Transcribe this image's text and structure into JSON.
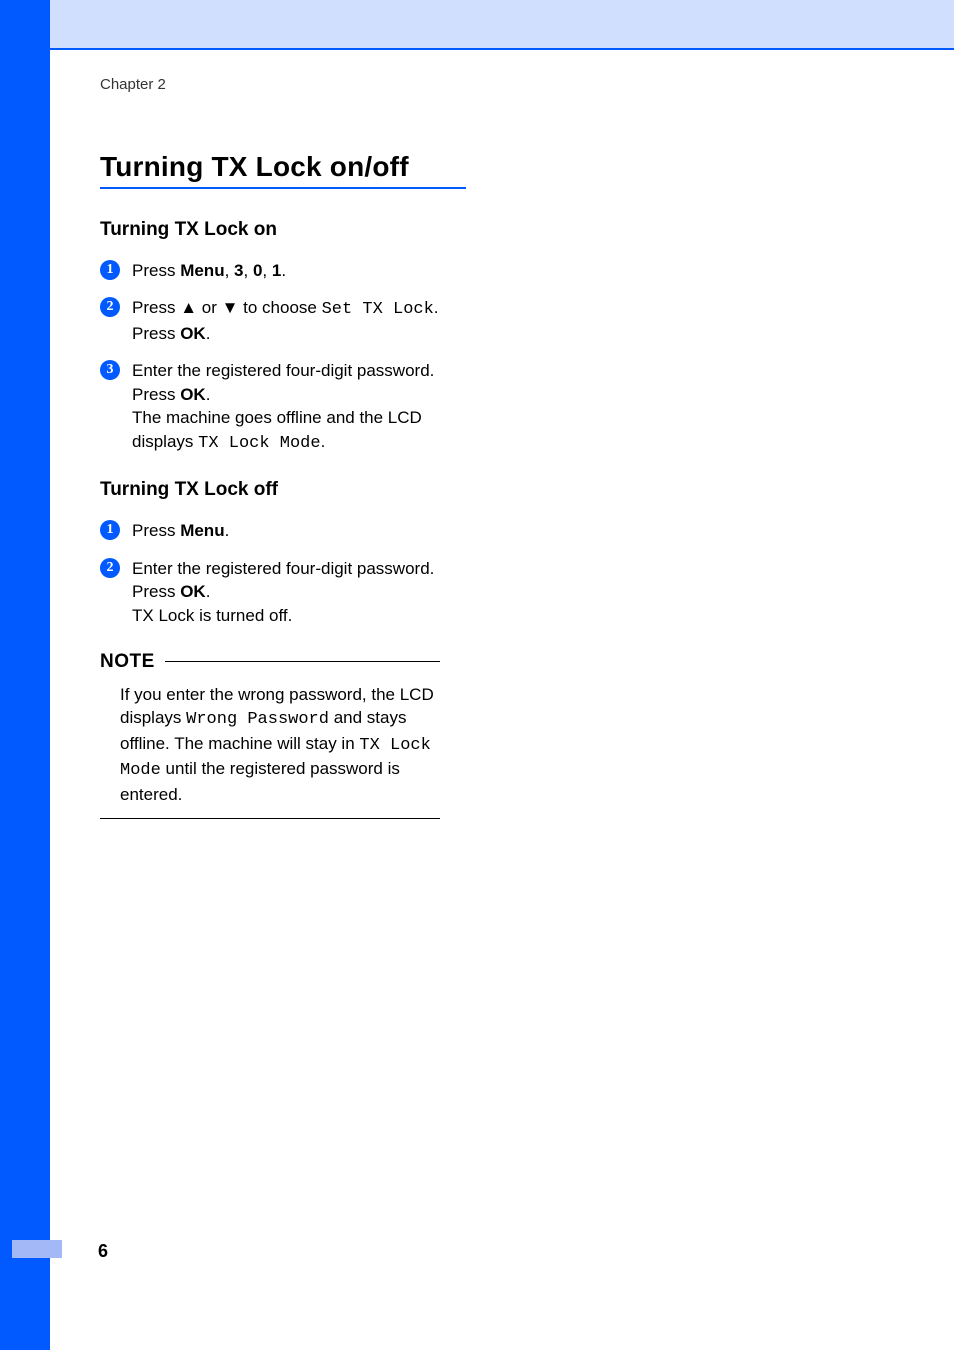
{
  "colors": {
    "accent": "#005aff",
    "header_bg": "#d0dffe",
    "footer_tab": "#a3b9f7"
  },
  "chapter_label": "Chapter 2",
  "page_number": "6",
  "section_title": "Turning TX Lock on/off",
  "subsection_on": {
    "heading": "Turning TX Lock on",
    "steps": [
      {
        "n": "1",
        "parts": [
          {
            "t": "Press "
          },
          {
            "t": "Menu",
            "b": true
          },
          {
            "t": ", "
          },
          {
            "t": "3",
            "b": true
          },
          {
            "t": ", "
          },
          {
            "t": "0",
            "b": true
          },
          {
            "t": ", "
          },
          {
            "t": "1",
            "b": true
          },
          {
            "t": "."
          }
        ]
      },
      {
        "n": "2",
        "parts": [
          {
            "t": "Press "
          },
          {
            "t": "▲",
            "glyph": true
          },
          {
            "t": " or "
          },
          {
            "t": "▼",
            "glyph": true
          },
          {
            "t": " to choose "
          },
          {
            "t": "Set TX Lock",
            "mono": true
          },
          {
            "t": "."
          },
          {
            "br": true
          },
          {
            "t": "Press "
          },
          {
            "t": "OK",
            "b": true
          },
          {
            "t": "."
          }
        ]
      },
      {
        "n": "3",
        "parts": [
          {
            "t": "Enter the registered four-digit password."
          },
          {
            "br": true
          },
          {
            "t": "Press "
          },
          {
            "t": "OK",
            "b": true
          },
          {
            "t": "."
          },
          {
            "br": true
          },
          {
            "t": "The machine goes offline and the LCD displays "
          },
          {
            "t": "TX Lock Mode",
            "mono": true
          },
          {
            "t": "."
          }
        ]
      }
    ]
  },
  "subsection_off": {
    "heading": "Turning TX Lock off",
    "steps": [
      {
        "n": "1",
        "parts": [
          {
            "t": "Press "
          },
          {
            "t": "Menu",
            "b": true
          },
          {
            "t": "."
          }
        ]
      },
      {
        "n": "2",
        "parts": [
          {
            "t": "Enter the registered four-digit password."
          },
          {
            "br": true
          },
          {
            "t": "Press "
          },
          {
            "t": "OK",
            "b": true
          },
          {
            "t": "."
          },
          {
            "br": true
          },
          {
            "t": "TX Lock is turned off."
          }
        ]
      }
    ]
  },
  "note": {
    "label": "NOTE",
    "parts": [
      {
        "t": "If you enter the wrong password, the LCD displays "
      },
      {
        "t": "Wrong Password",
        "mono": true
      },
      {
        "t": " and stays offline. The machine will stay in "
      },
      {
        "t": "TX Lock Mode",
        "mono": true
      },
      {
        "t": " until the registered password is entered."
      }
    ]
  }
}
